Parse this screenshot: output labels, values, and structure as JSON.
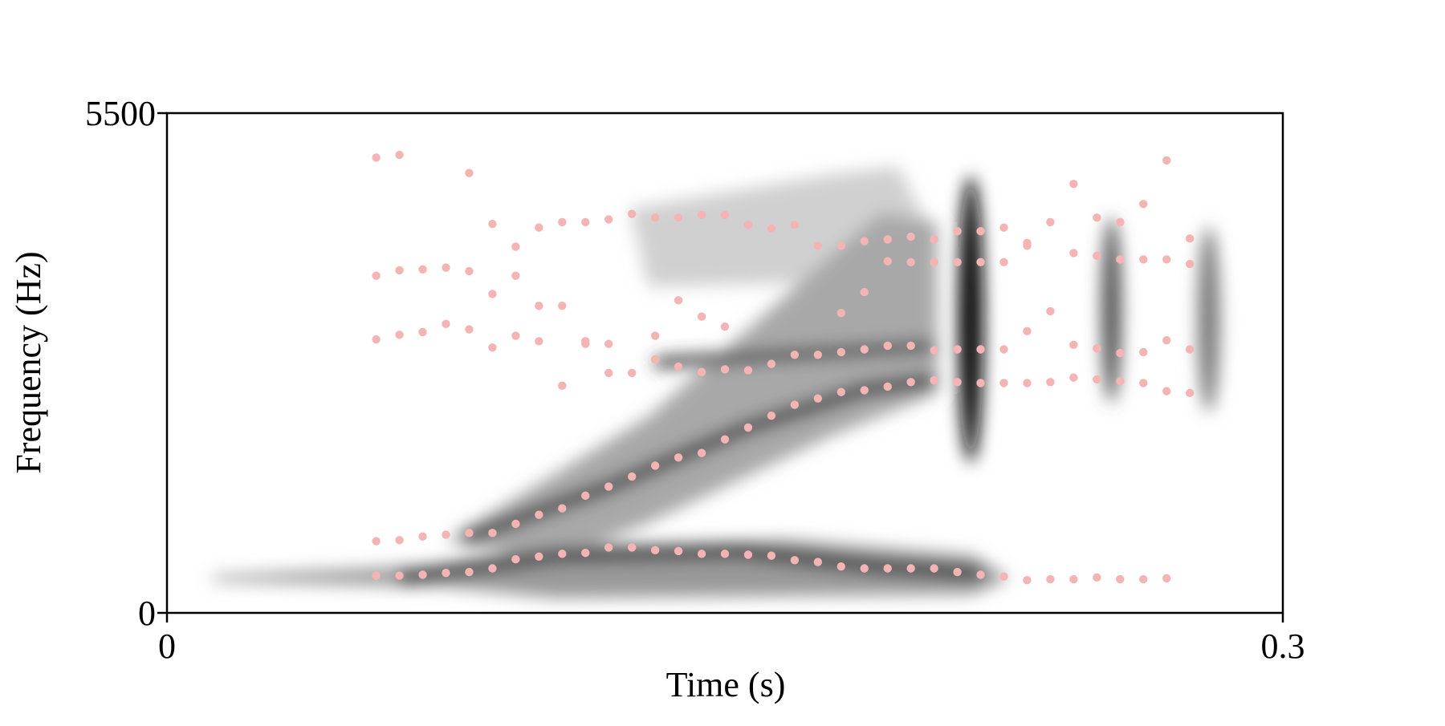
{
  "chart_data": {
    "type": "scatter",
    "x_label": "Time (s)",
    "y_label": "Frequency (Hz)",
    "xlim": [
      0,
      0.3
    ],
    "ylim": [
      0,
      5500
    ],
    "xticks": [
      0,
      0.3
    ],
    "yticks": [
      0,
      5500
    ],
    "x": [
      0.05625,
      0.0625,
      0.06875,
      0.075,
      0.08125,
      0.0875,
      0.09375,
      0.1,
      0.10625,
      0.1125,
      0.11875,
      0.125,
      0.13125,
      0.1375,
      0.14375,
      0.15,
      0.15625,
      0.1625,
      0.16875,
      0.175,
      0.18125,
      0.1875,
      0.19375,
      0.2,
      0.20625,
      0.2125,
      0.21875,
      0.225,
      0.23125,
      0.2375,
      0.24375,
      0.25,
      0.25625,
      0.2625,
      0.26875,
      0.275
    ],
    "series": [
      {
        "color": "#f4b4b4",
        "values": [
          410,
          410,
          420,
          440,
          450,
          490,
          590,
          620,
          650,
          660,
          720,
          720,
          690,
          680,
          650,
          650,
          640,
          630,
          580,
          560,
          510,
          490,
          490,
          490,
          490,
          450,
          420,
          400,
          360,
          370,
          370,
          390,
          370,
          370,
          380,
          null
        ]
      },
      {
        "color": "#f4b4b4",
        "values": [
          790,
          800,
          840,
          860,
          880,
          880,
          980,
          1080,
          1150,
          1290,
          1390,
          1500,
          1620,
          1710,
          1760,
          1910,
          2040,
          2170,
          2290,
          2360,
          2430,
          2450,
          2490,
          2540,
          2560,
          2540,
          2530,
          2530,
          2530,
          2540,
          2590,
          2570,
          2550,
          2530,
          2440,
          2420
        ]
      },
      {
        "color": "#f4b4b4",
        "values": [
          3010,
          3060,
          3090,
          3180,
          3120,
          2920,
          3050,
          2990,
          2500,
          2990,
          2640,
          2640,
          2790,
          2710,
          2650,
          2680,
          2670,
          2740,
          2840,
          2840,
          2870,
          2900,
          2940,
          2940,
          2890,
          2900,
          2900,
          2900,
          3100,
          3320,
          2950,
          2910,
          2860,
          2870,
          3000,
          2900
        ]
      },
      {
        "color": "#f4b4b4",
        "values": [
          3710,
          3770,
          3780,
          3800,
          3760,
          3510,
          3710,
          3380,
          3380,
          2960,
          2960,
          null,
          3050,
          3440,
          3260,
          3150,
          null,
          null,
          null,
          null,
          3300,
          3530,
          3870,
          3860,
          3860,
          3860,
          3860,
          3860,
          4040,
          null,
          3960,
          3930,
          3890,
          3890,
          3890,
          3840
        ]
      },
      {
        "color": "#f4b4b4",
        "values": [
          5010,
          5040,
          null,
          null,
          4840,
          4280,
          4030,
          4240,
          4300,
          4300,
          4330,
          4390,
          4350,
          4350,
          4380,
          4380,
          4270,
          4230,
          4270,
          4040,
          4040,
          4090,
          4110,
          4140,
          4110,
          4200,
          4200,
          4240,
          4070,
          4300,
          4720,
          4350,
          4300,
          4500,
          4980,
          4120
        ]
      }
    ]
  }
}
